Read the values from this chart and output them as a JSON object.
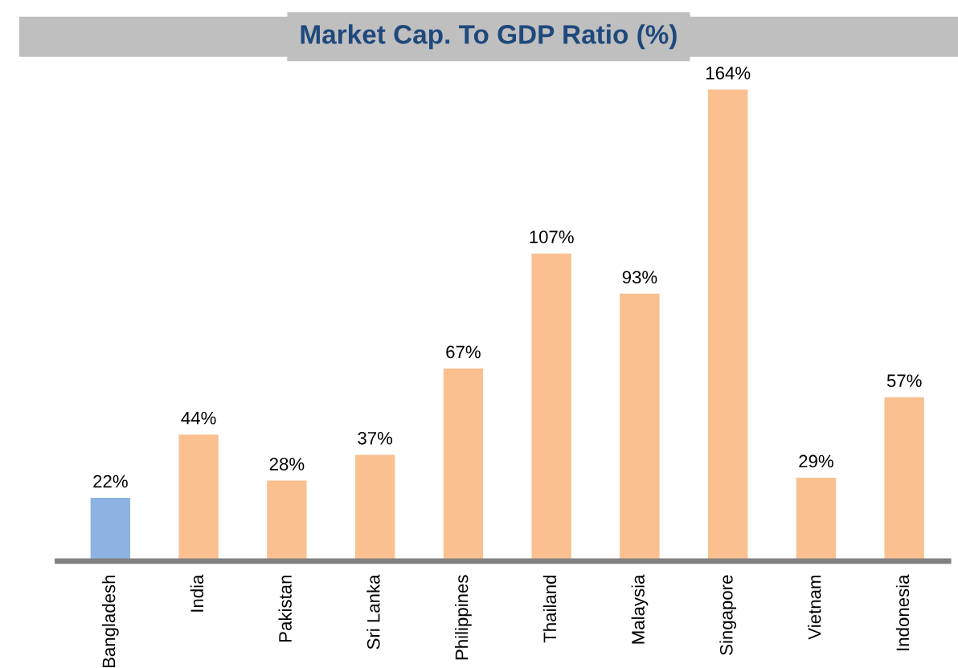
{
  "chart_data": {
    "type": "bar",
    "title": "Market Cap. To GDP Ratio (%)",
    "categories": [
      "Bangladesh",
      "India",
      "Pakistan",
      "Sri Lanka",
      "Philippines",
      "Thailand",
      "Malaysia",
      "Singapore",
      "Vietnam",
      "Indonesia"
    ],
    "values": [
      22,
      44,
      28,
      37,
      67,
      107,
      93,
      164,
      29,
      57
    ],
    "value_labels": [
      "22%",
      "44%",
      "28%",
      "37%",
      "67%",
      "107%",
      "93%",
      "164%",
      "29%",
      "57%"
    ],
    "colors": [
      "#8db3e2",
      "#fac090",
      "#fac090",
      "#fac090",
      "#fac090",
      "#fac090",
      "#fac090",
      "#fac090",
      "#fac090",
      "#fac090"
    ],
    "tick_labels": "x",
    "grid": false,
    "legend": false
  }
}
